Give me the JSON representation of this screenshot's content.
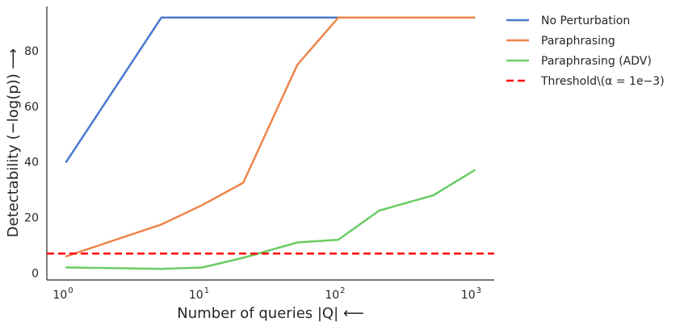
{
  "chart_data": {
    "type": "line",
    "xscale": "log",
    "xlim": [
      0.72,
      1400
    ],
    "ylim": [
      -2.5,
      96
    ],
    "grid": false,
    "legend_position": "outside-right",
    "xlabel": "Number of queries |Q| ⟵",
    "ylabel": "Detectability (−log(p)) ⟶",
    "x_ticks": [
      {
        "value": 1,
        "label_base": "10",
        "label_exp": "0"
      },
      {
        "value": 10,
        "label_base": "10",
        "label_exp": "1"
      },
      {
        "value": 100,
        "label_base": "10",
        "label_exp": "2"
      },
      {
        "value": 1000,
        "label_base": "10",
        "label_exp": "3"
      }
    ],
    "y_ticks": [
      {
        "value": 0,
        "label": "0"
      },
      {
        "value": 20,
        "label": "20"
      },
      {
        "value": 40,
        "label": "40"
      },
      {
        "value": 60,
        "label": "60"
      },
      {
        "value": 80,
        "label": "80"
      }
    ],
    "series": [
      {
        "name": "No Perturbation",
        "color": "#4878d0",
        "style": "solid",
        "points": [
          [
            1,
            40
          ],
          [
            5,
            92
          ],
          [
            100,
            92
          ],
          [
            1000,
            92
          ]
        ]
      },
      {
        "name": "Paraphrasing",
        "color": "#ee854a",
        "style": "solid",
        "points": [
          [
            1,
            6
          ],
          [
            5,
            17.5
          ],
          [
            10,
            24.5
          ],
          [
            20,
            32.5
          ],
          [
            50,
            75
          ],
          [
            100,
            92
          ],
          [
            1000,
            92
          ]
        ]
      },
      {
        "name": "Paraphrasing (ADV)",
        "color": "#6acc64",
        "style": "solid",
        "points": [
          [
            1,
            2
          ],
          [
            5,
            1.5
          ],
          [
            10,
            2
          ],
          [
            20,
            5.5
          ],
          [
            50,
            11
          ],
          [
            100,
            12
          ],
          [
            200,
            22.5
          ],
          [
            500,
            28
          ],
          [
            1000,
            37
          ]
        ]
      },
      {
        "name": "Threshold\\(α = 1e−3)",
        "color": "#ff0000",
        "style": "dashed",
        "hline": 7
      }
    ]
  }
}
